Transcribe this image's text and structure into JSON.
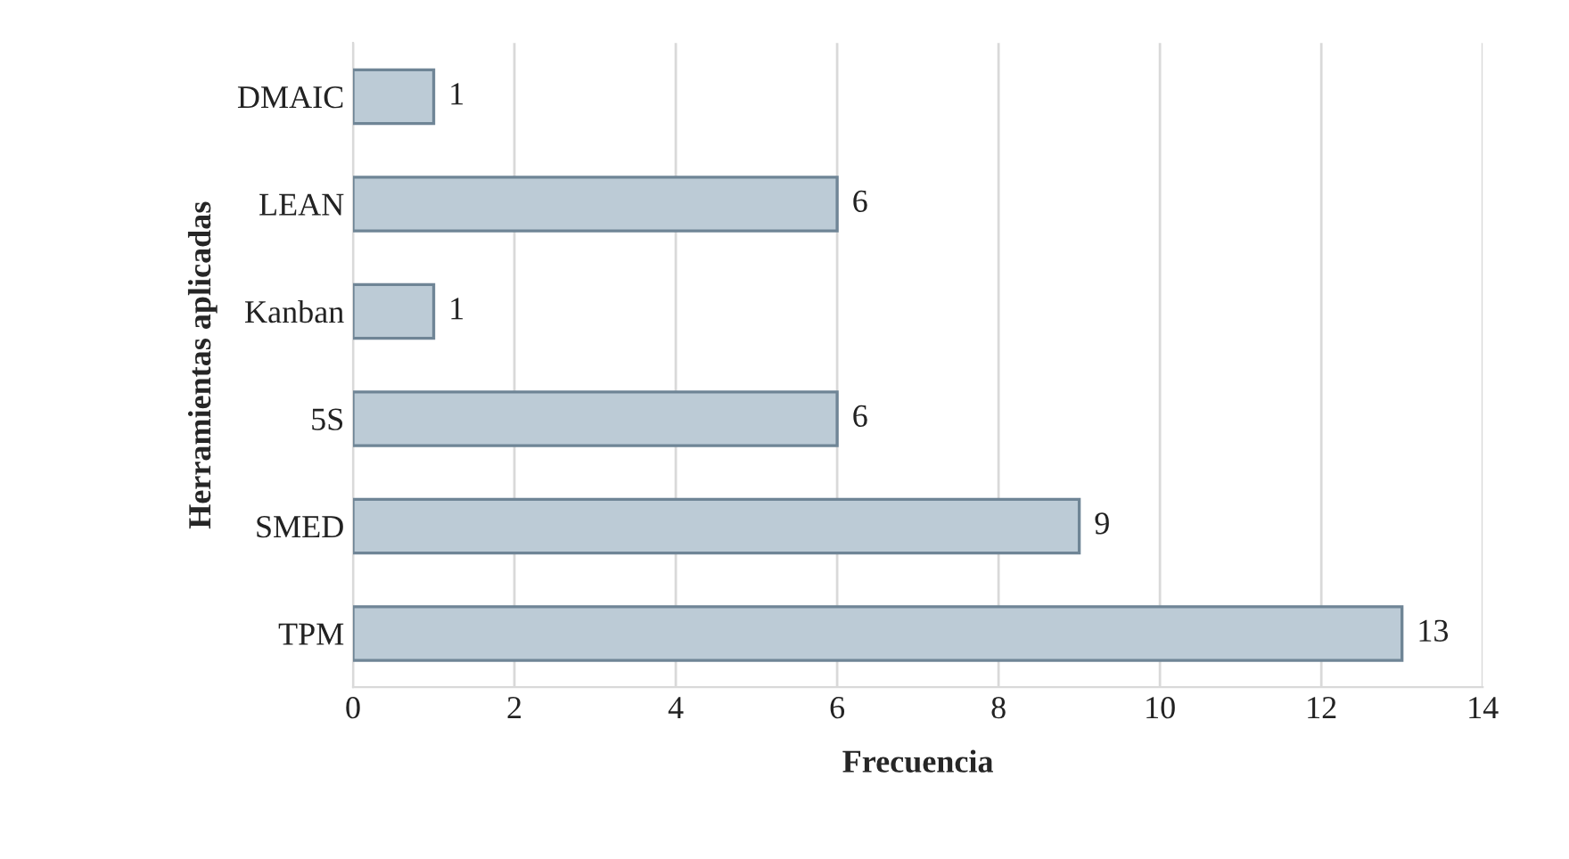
{
  "chart_data": {
    "type": "bar",
    "orientation": "horizontal",
    "xlabel": "Frecuencia",
    "ylabel": "Herramientas aplicadas",
    "categories": [
      "DMAIC",
      "LEAN",
      "Kanban",
      "5S",
      "SMED",
      "TPM"
    ],
    "values": [
      1,
      6,
      1,
      6,
      9,
      13
    ],
    "color": "#bccbd6",
    "xlim": [
      0,
      14
    ],
    "xticks": [
      0,
      2,
      4,
      6,
      8,
      10,
      12,
      14
    ],
    "grid": "x",
    "data_labels": true
  }
}
